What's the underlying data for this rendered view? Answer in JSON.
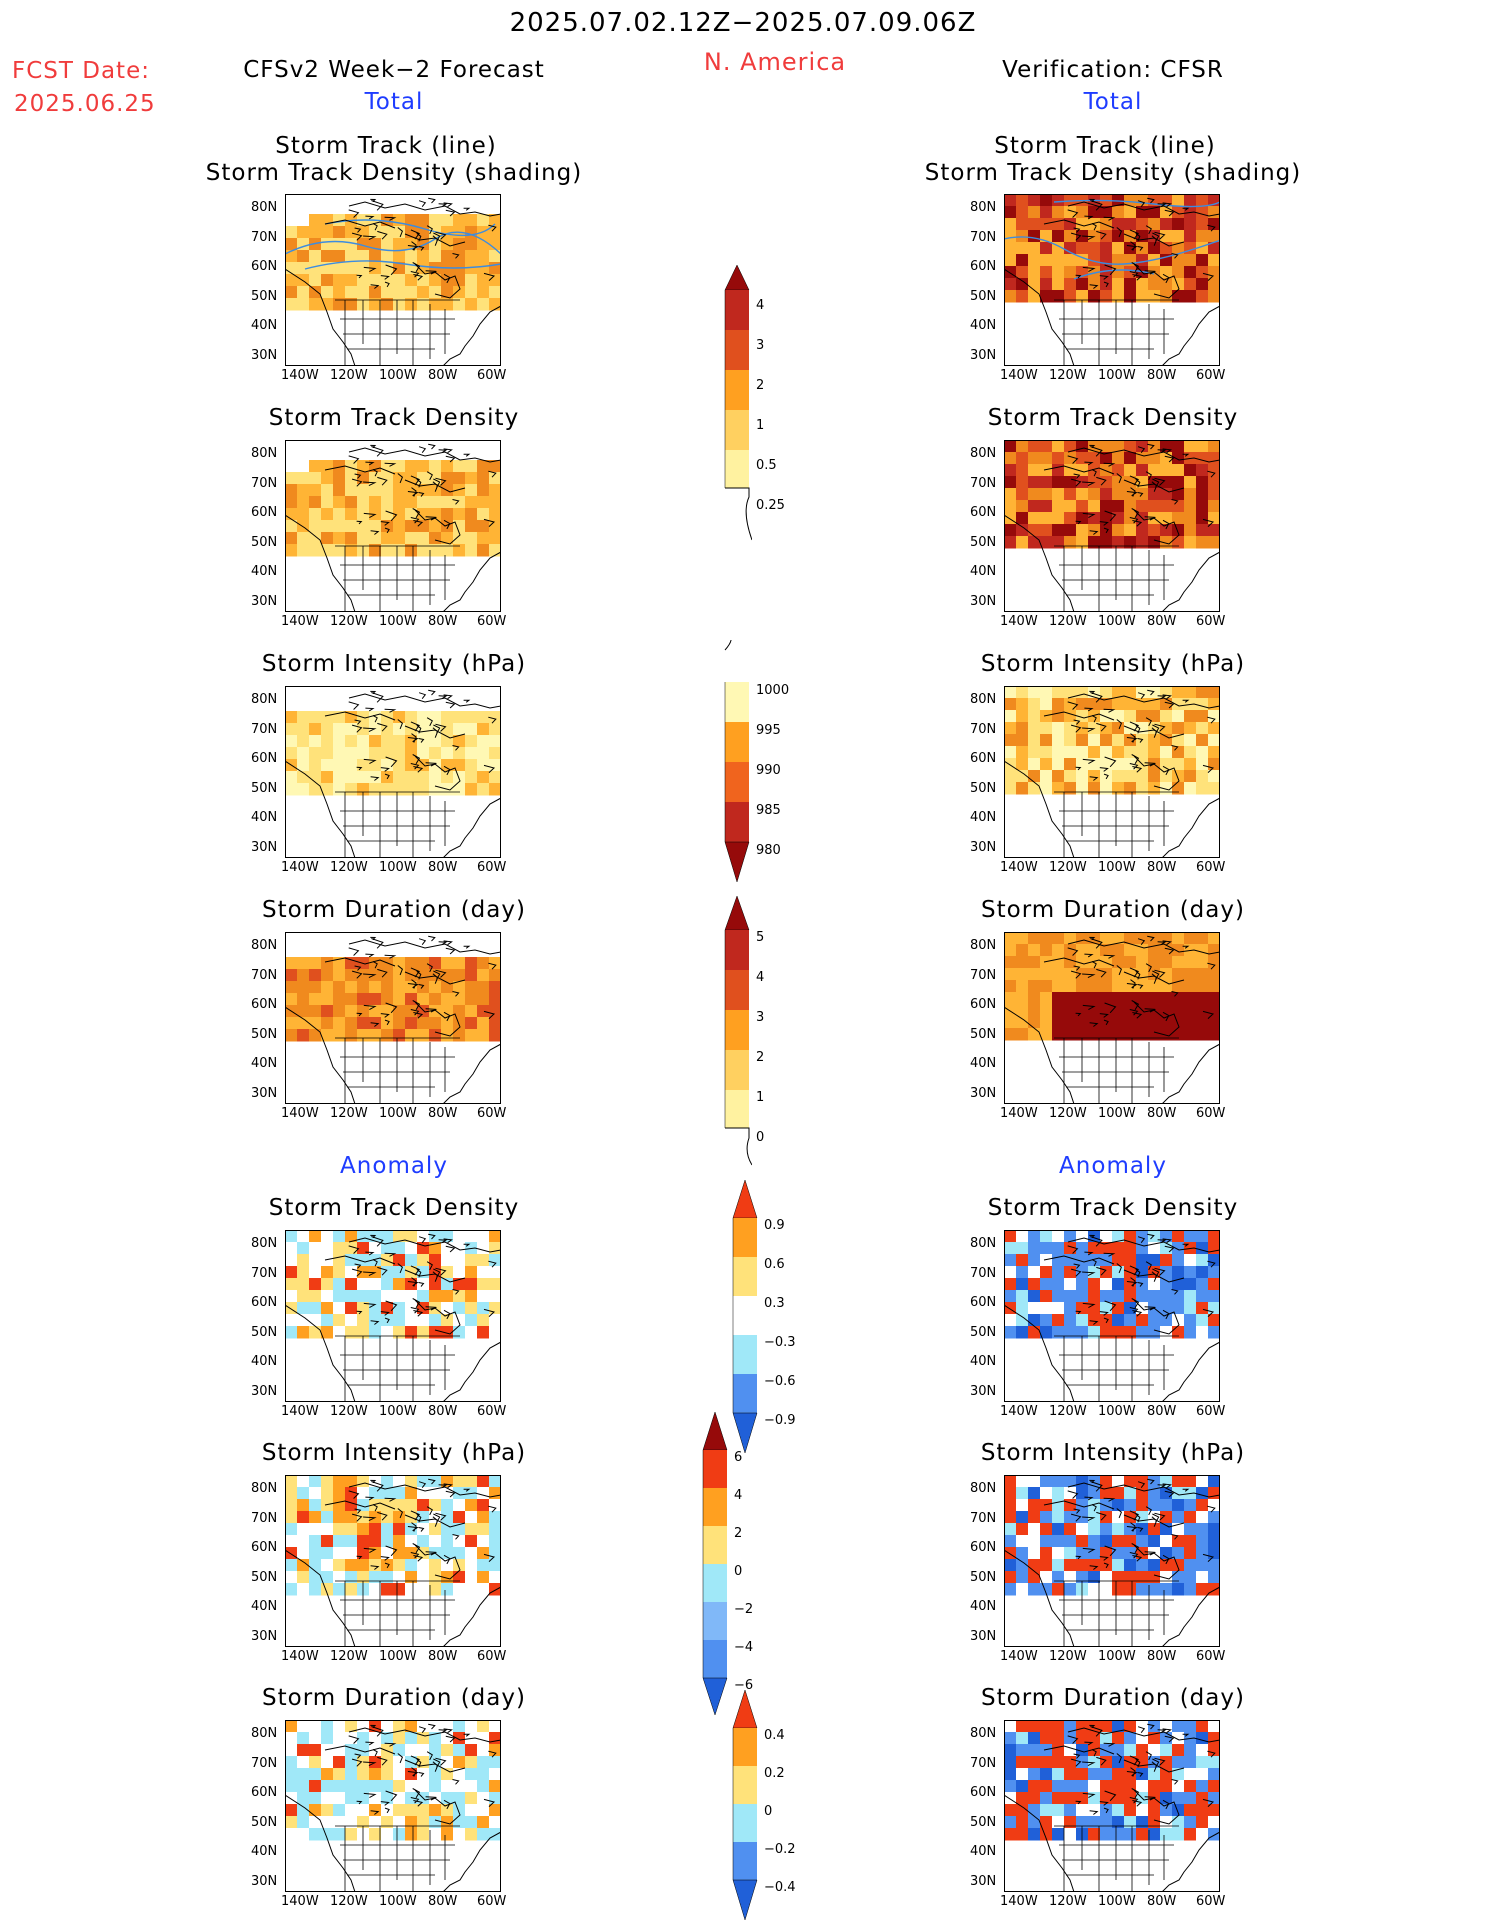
{
  "header": {
    "date_range": "2025.07.02.12Z−2025.07.09.06Z",
    "region": "N. America",
    "fcst_label": "FCST Date:",
    "fcst_date": "2025.06.25",
    "left_title": "CFSv2 Week−2 Forecast",
    "right_title": "Verification: CFSR",
    "total_label_left": "Total",
    "total_label_right": "Total",
    "anomaly_label_left": "Anomaly",
    "anomaly_label_right": "Anomaly"
  },
  "panel_titles": {
    "p1_line1": "Storm Track (line)",
    "p1_line2": "Storm Track Density (shading)",
    "p2": "Storm Track Density",
    "p3": "Storm Intensity (hPa)",
    "p4": "Storm Duration (day)",
    "p5": "Storm Track Density",
    "p6": "Storm Intensity (hPa)",
    "p7": "Storm Duration (day)"
  },
  "axes": {
    "lat_ticks": [
      "80N",
      "70N",
      "60N",
      "50N",
      "40N",
      "30N"
    ],
    "lon_ticks": [
      "140W",
      "120W",
      "100W",
      "80W",
      "60W"
    ]
  },
  "colorbars": {
    "density": [
      "4",
      "3",
      "2",
      "1",
      "0.5",
      "0.25"
    ],
    "intensity": [
      "1000",
      "995",
      "990",
      "985",
      "980"
    ],
    "duration": [
      "5",
      "4",
      "3",
      "2",
      "1",
      "0"
    ],
    "anom_density": [
      "0.9",
      "0.6",
      "0.3",
      "−0.3",
      "−0.6",
      "−0.9"
    ],
    "anom_intensity": [
      "6",
      "4",
      "2",
      "0",
      "−2",
      "−4",
      "−6"
    ],
    "anom_duration": [
      "0.4",
      "0.2",
      "0",
      "−0.2",
      "−0.4"
    ]
  },
  "colors": {
    "title_red": "#f03c3c",
    "label_blue": "#1e3cff",
    "warm_scale": [
      "#fff8b4",
      "#ffe27a",
      "#ffb435",
      "#f08a1e",
      "#e0501e",
      "#c0281e",
      "#960a0a"
    ],
    "anom_scale": [
      "#2060d8",
      "#5090f0",
      "#a0e8f8",
      "#ffffff",
      "#ffe27a",
      "#ffa020",
      "#f03c14"
    ]
  }
}
